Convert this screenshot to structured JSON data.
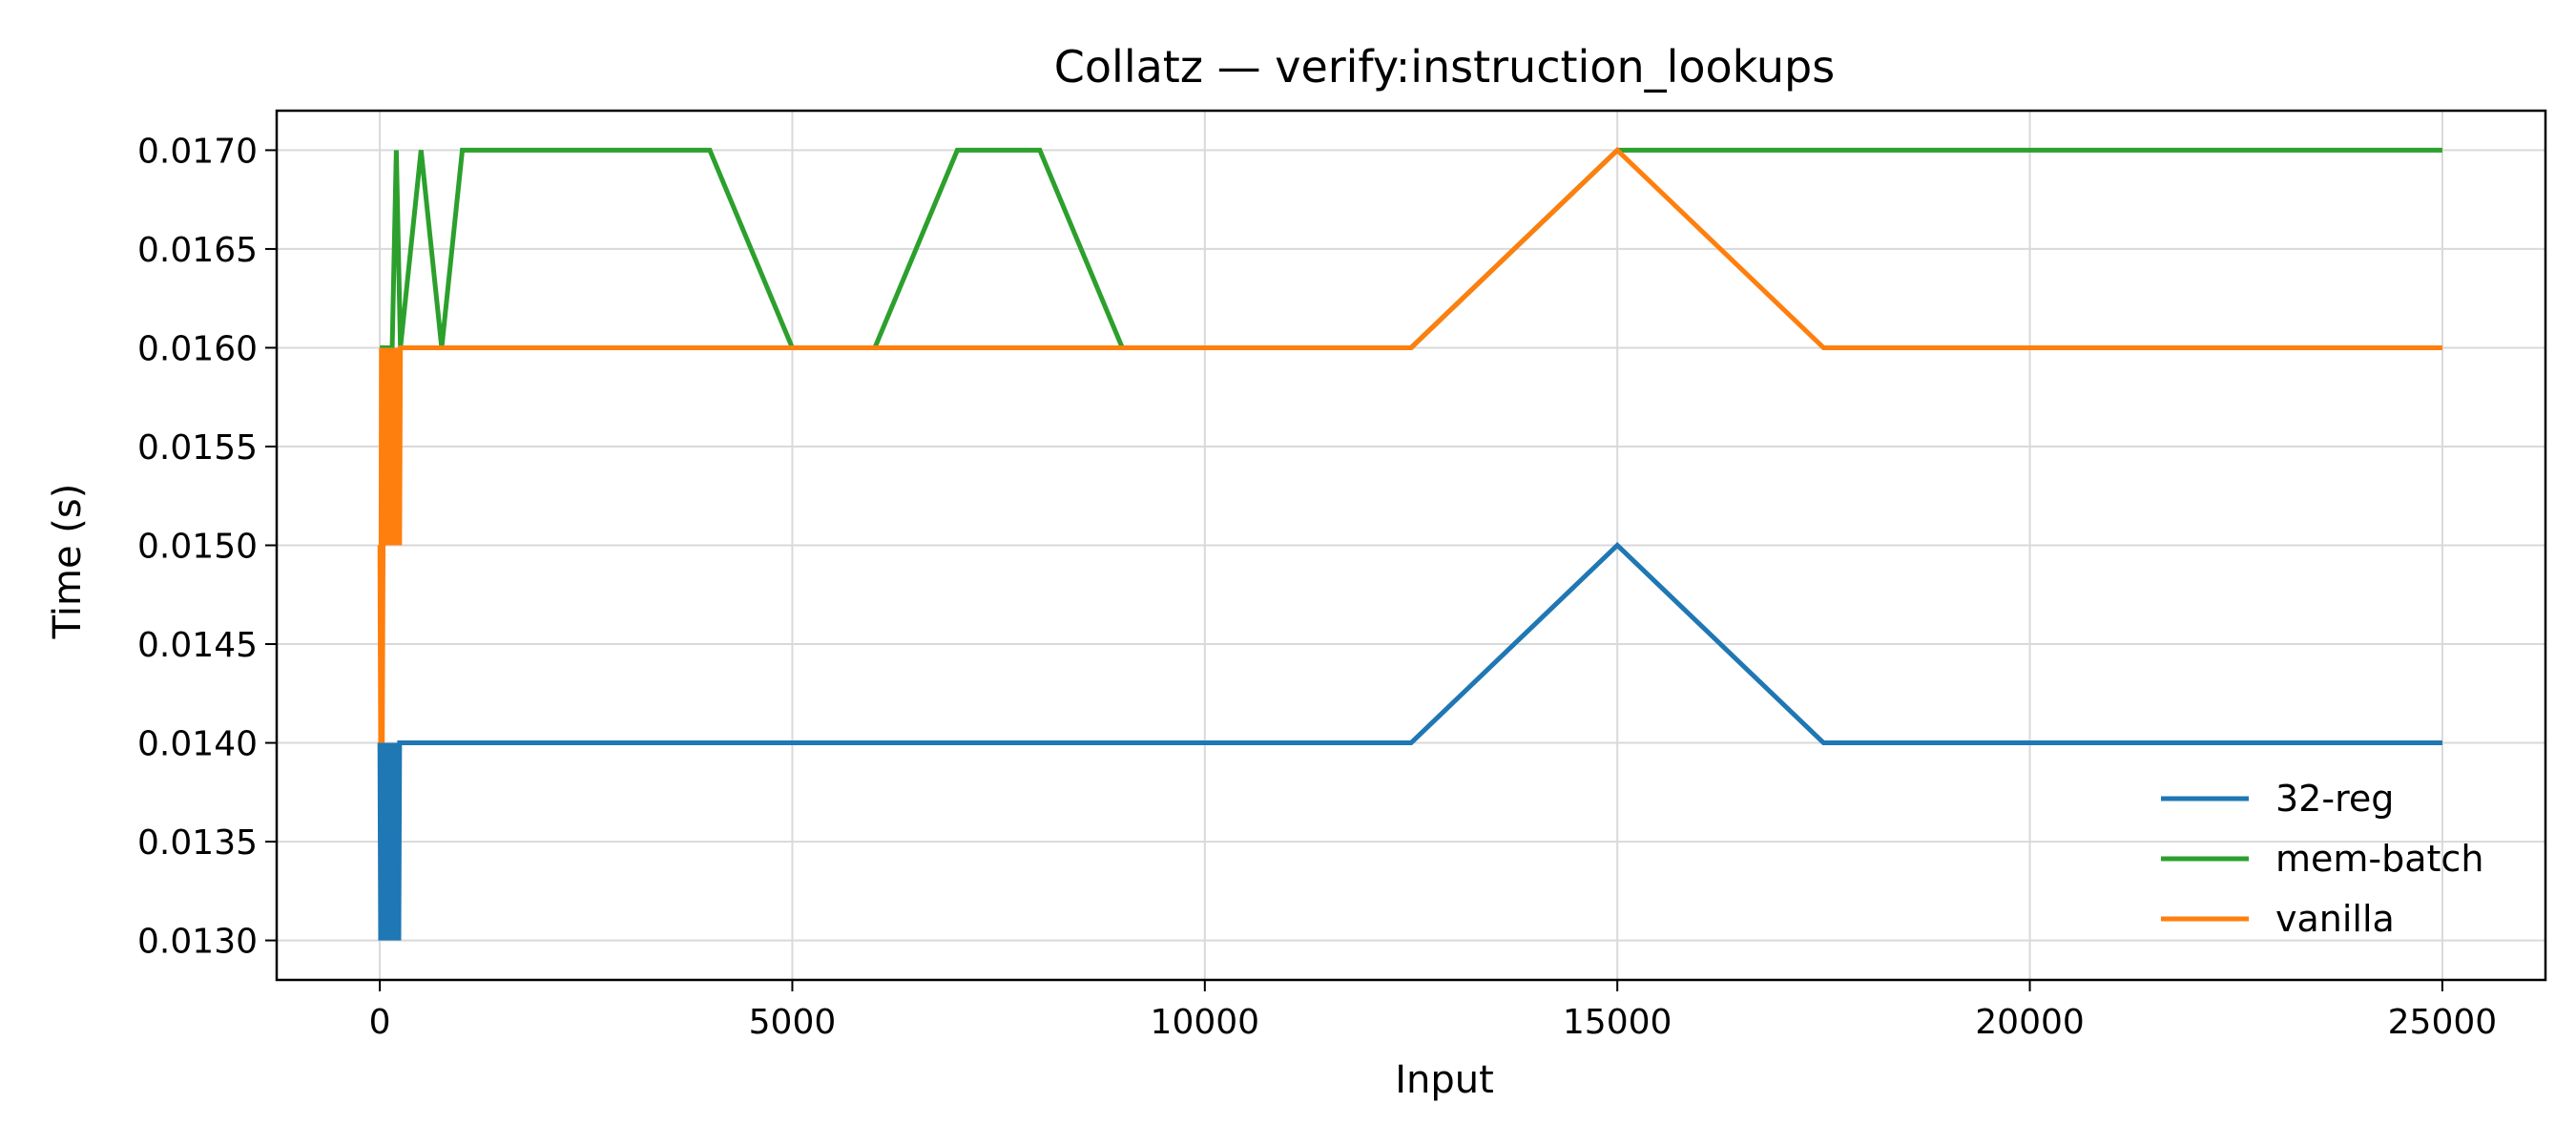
{
  "chart_data": {
    "type": "line",
    "title": "Collatz — verify:instruction_lookups",
    "xlabel": "Input",
    "ylabel": "Time (s)",
    "xlim": [
      -1250,
      26250
    ],
    "ylim": [
      0.0128,
      0.0172
    ],
    "xticks": [
      0,
      5000,
      10000,
      15000,
      20000,
      25000
    ],
    "xtick_labels": [
      "0",
      "5000",
      "10000",
      "15000",
      "20000",
      "25000"
    ],
    "yticks": [
      0.013,
      0.0135,
      0.014,
      0.0145,
      0.015,
      0.0155,
      0.016,
      0.0165,
      0.017
    ],
    "ytick_labels": [
      "0.0130",
      "0.0135",
      "0.0140",
      "0.0145",
      "0.0150",
      "0.0155",
      "0.0160",
      "0.0165",
      "0.0170"
    ],
    "grid": true,
    "legend_position": "lower-right",
    "series": [
      {
        "name": "32-reg",
        "color": "#1f77b4",
        "x": [
          1,
          10,
          20,
          30,
          40,
          50,
          60,
          70,
          80,
          90,
          100,
          110,
          120,
          130,
          140,
          150,
          160,
          170,
          180,
          190,
          200,
          210,
          220,
          230,
          240,
          250,
          500,
          1000,
          5000,
          12500,
          15000,
          17500,
          25000
        ],
        "y": [
          0.014,
          0.013,
          0.014,
          0.013,
          0.014,
          0.013,
          0.014,
          0.013,
          0.014,
          0.013,
          0.014,
          0.013,
          0.014,
          0.013,
          0.014,
          0.013,
          0.014,
          0.013,
          0.014,
          0.013,
          0.014,
          0.013,
          0.014,
          0.013,
          0.014,
          0.014,
          0.014,
          0.014,
          0.014,
          0.014,
          0.015,
          0.014,
          0.014
        ]
      },
      {
        "name": "mem-batch",
        "color": "#2ca02c",
        "x": [
          1,
          100,
          150,
          200,
          250,
          500,
          750,
          1000,
          2000,
          4000,
          5000,
          6000,
          7000,
          8000,
          9000,
          12500,
          15000,
          17500,
          25000
        ],
        "y": [
          0.016,
          0.016,
          0.016,
          0.017,
          0.016,
          0.017,
          0.016,
          0.017,
          0.017,
          0.017,
          0.016,
          0.016,
          0.017,
          0.017,
          0.016,
          0.016,
          0.017,
          0.017,
          0.017
        ]
      },
      {
        "name": "vanilla",
        "color": "#ff7f0e",
        "x": [
          1,
          10,
          20,
          30,
          40,
          50,
          60,
          70,
          80,
          90,
          100,
          110,
          120,
          130,
          140,
          150,
          160,
          170,
          180,
          190,
          200,
          210,
          220,
          230,
          240,
          250,
          500,
          1000,
          5000,
          12500,
          15000,
          17500,
          25000
        ],
        "y": [
          0.015,
          0.014,
          0.016,
          0.014,
          0.015,
          0.016,
          0.015,
          0.016,
          0.015,
          0.016,
          0.015,
          0.016,
          0.015,
          0.016,
          0.015,
          0.016,
          0.015,
          0.016,
          0.015,
          0.016,
          0.015,
          0.016,
          0.015,
          0.016,
          0.015,
          0.016,
          0.016,
          0.016,
          0.016,
          0.016,
          0.017,
          0.016,
          0.016
        ]
      }
    ]
  }
}
